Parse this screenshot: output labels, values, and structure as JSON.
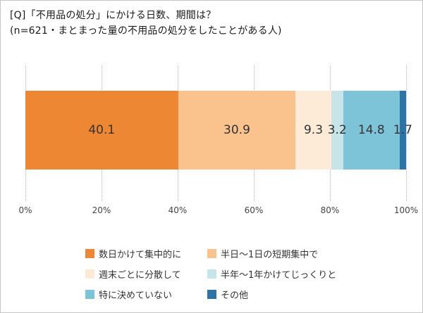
{
  "header": {
    "title": "[Q]「不用品の処分」にかける日数、期間は？",
    "subtitle": "(n=621・まとまった量の不用品の処分をしたことがある人)"
  },
  "chart_data": {
    "type": "bar",
    "orientation": "horizontal-stacked",
    "title": "[Q]「不用品の処分」にかける日数、期間は？",
    "subtitle": "(n=621・まとまった量の不用品の処分をしたことがある人)",
    "unit": "%",
    "xlim": [
      0,
      100
    ],
    "x_ticks": [
      "0%",
      "20%",
      "40%",
      "60%",
      "80%",
      "100%"
    ],
    "grid": "dotted-vertical",
    "legend_position": "bottom",
    "segments": [
      {
        "label": "数日かけて集中的に",
        "value": 40.1,
        "color": "#ED8733"
      },
      {
        "label": "半日～1日の短期集中で",
        "value": 30.9,
        "color": "#FAC28D"
      },
      {
        "label": "週末ごとに分散して",
        "value": 9.3,
        "color": "#FDEBD8"
      },
      {
        "label": "半年～1年かけてじっくりと",
        "value": 3.2,
        "color": "#C7E4E9"
      },
      {
        "label": "特に決めていない",
        "value": 14.8,
        "color": "#7EC4D8"
      },
      {
        "label": "その他",
        "value": 1.7,
        "color": "#2C73A8"
      }
    ]
  }
}
